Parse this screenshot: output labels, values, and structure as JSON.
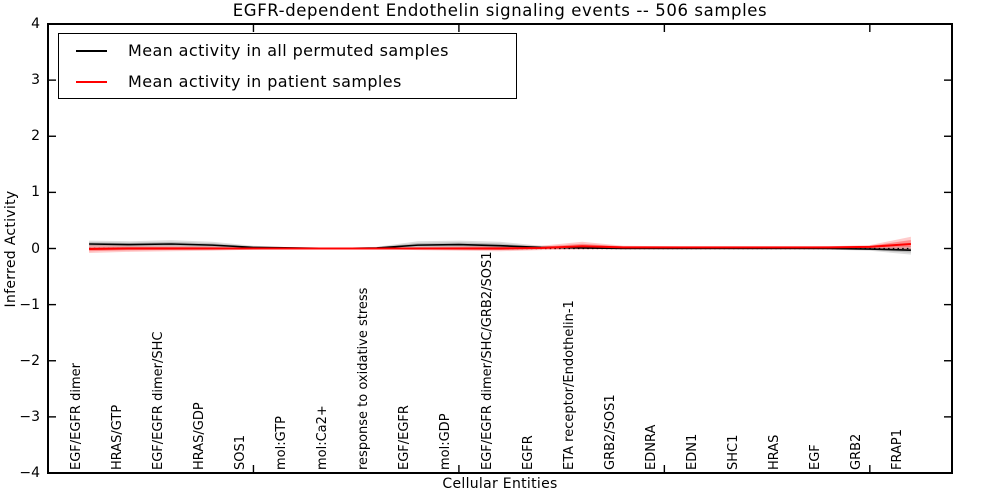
{
  "chart_data": {
    "type": "line",
    "title": "EGFR-dependent Endothelin signaling events -- 506 samples",
    "xlabel": "Cellular Entities",
    "ylabel": "Inferred Activity",
    "ylim": [
      -4,
      4
    ],
    "ytick_values": [
      4,
      3,
      2,
      1,
      0,
      -1,
      -2,
      -3,
      -4
    ],
    "ytick_labels": [
      "4",
      "3",
      "2",
      "1",
      "0",
      "−1",
      "−2",
      "−3",
      "−4"
    ],
    "xtick_indices": [
      4,
      9,
      14,
      19
    ],
    "grid": false,
    "legend_position": "upper-left",
    "zero_line": {
      "value": 0,
      "style": "dotted",
      "color": "#000000"
    },
    "categories": [
      "EGF/EGFR dimer",
      "HRAS/GTP",
      "EGF/EGFR dimer/SHC",
      "HRAS/GDP",
      "SOS1",
      "mol:GTP",
      "mol:Ca2+",
      "response to oxidative stress",
      "EGF/EGFR",
      "mol:GDP",
      "EGF/EGFR dimer/SHC/GRB2/SOS1",
      "EGFR",
      "ETA receptor/Endothelin-1",
      "GRB2/SOS1",
      "EDNRA",
      "EDN1",
      "SHC1",
      "HRAS",
      "EGF",
      "GRB2",
      "FRAP1"
    ],
    "series": [
      {
        "id": "permuted",
        "name": "Mean activity in all permuted samples",
        "color": "#000000",
        "mean": [
          0.08,
          0.07,
          0.08,
          0.06,
          0.02,
          0.01,
          0.0,
          0.01,
          0.06,
          0.07,
          0.05,
          0.02,
          0.01,
          0.0,
          0.0,
          0.0,
          0.0,
          0.0,
          0.0,
          -0.01,
          -0.03
        ],
        "band_upper": [
          0.14,
          0.13,
          0.15,
          0.12,
          0.05,
          0.02,
          0.01,
          0.03,
          0.13,
          0.14,
          0.12,
          0.05,
          0.03,
          0.02,
          0.01,
          0.01,
          0.01,
          0.01,
          0.01,
          0.02,
          0.04
        ],
        "band_lower": [
          0.02,
          0.01,
          0.02,
          0.01,
          -0.01,
          -0.01,
          -0.01,
          -0.01,
          0.01,
          0.01,
          -0.01,
          -0.01,
          -0.01,
          -0.01,
          -0.01,
          -0.01,
          -0.01,
          -0.01,
          -0.02,
          -0.04,
          -0.11
        ]
      },
      {
        "id": "patient",
        "name": "Mean activity in patient samples",
        "color": "#ff0000",
        "mean": [
          -0.01,
          0.0,
          0.0,
          0.0,
          0.0,
          0.0,
          0.0,
          0.0,
          0.0,
          0.0,
          0.0,
          0.01,
          0.04,
          0.02,
          0.02,
          0.02,
          0.02,
          0.02,
          0.02,
          0.03,
          0.08
        ],
        "band_upper": [
          0.06,
          0.05,
          0.05,
          0.04,
          0.02,
          0.01,
          0.01,
          0.01,
          0.03,
          0.04,
          0.05,
          0.05,
          0.12,
          0.05,
          0.04,
          0.03,
          0.03,
          0.03,
          0.04,
          0.06,
          0.21
        ],
        "band_lower": [
          -0.08,
          -0.06,
          -0.05,
          -0.04,
          -0.02,
          -0.01,
          -0.01,
          -0.01,
          -0.03,
          -0.04,
          -0.05,
          -0.03,
          -0.02,
          -0.01,
          0.0,
          0.0,
          0.0,
          0.0,
          0.0,
          0.0,
          -0.02
        ]
      }
    ]
  }
}
